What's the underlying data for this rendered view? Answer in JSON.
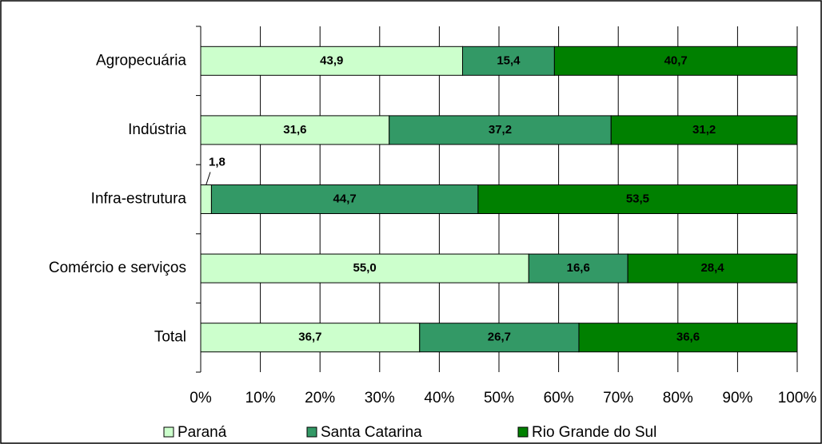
{
  "chart_data": {
    "type": "stacked_bar_horizontal",
    "categories": [
      "Agropecuária",
      "Indústria",
      "Infra-estrutura",
      "Comércio e serviços",
      "Total"
    ],
    "series": [
      {
        "name": "Paraná",
        "color": "#ccffcc",
        "label_color": "#004d00",
        "values": [
          43.9,
          31.6,
          1.8,
          55.0,
          36.7
        ],
        "value_labels": [
          "43,9",
          "31,6",
          "1,8",
          "55,0",
          "36,7"
        ]
      },
      {
        "name": "Santa Catarina",
        "color": "#339966",
        "label_color": "#ffffff",
        "values": [
          15.4,
          37.2,
          44.7,
          16.6,
          26.7
        ],
        "value_labels": [
          "15,4",
          "37,2",
          "44,7",
          "16,6",
          "26,7"
        ]
      },
      {
        "name": "Rio Grande do Sul",
        "color": "#008000",
        "label_color": "#ffffff",
        "values": [
          40.7,
          31.2,
          53.5,
          28.4,
          36.6
        ],
        "value_labels": [
          "40,7",
          "31,2",
          "53,5",
          "28,4",
          "36,6"
        ]
      }
    ],
    "xlim": [
      0,
      100
    ],
    "xticks": [
      {
        "value": 0,
        "label": "0%"
      },
      {
        "value": 10,
        "label": "10%"
      },
      {
        "value": 20,
        "label": "20%"
      },
      {
        "value": 30,
        "label": "30%"
      },
      {
        "value": 40,
        "label": "40%"
      },
      {
        "value": 50,
        "label": "50%"
      },
      {
        "value": 60,
        "label": "60%"
      },
      {
        "value": 70,
        "label": "70%"
      },
      {
        "value": 80,
        "label": "80%"
      },
      {
        "value": 90,
        "label": "90%"
      },
      {
        "value": 100,
        "label": "100%"
      }
    ],
    "grid": true,
    "legend": "bottom"
  }
}
